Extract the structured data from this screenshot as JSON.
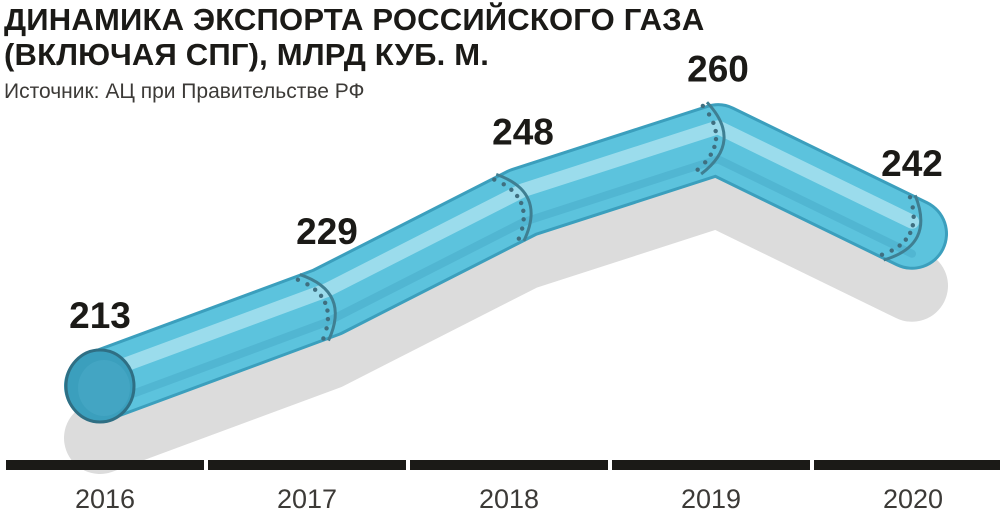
{
  "header": {
    "title_line1": "ДИНАМИКА ЭКСПОРТА РОССИЙСКОГО ГАЗА",
    "title_line2": "(ВКЛЮЧАЯ СПГ), МЛРД КУБ. М.",
    "source": "Источник: АЦ при Правительстве РФ"
  },
  "chart_data": {
    "type": "line",
    "title": "ДИНАМИКА ЭКСПОРТА РОССИЙСКОГО ГАЗА (ВКЛЮЧАЯ СПГ), МЛРД КУБ. М.",
    "categories": [
      "2016",
      "2017",
      "2018",
      "2019",
      "2020"
    ],
    "values": [
      213,
      229,
      248,
      260,
      242
    ],
    "value_labels": [
      "213",
      "229",
      "248",
      "260",
      "242"
    ],
    "xlabel": "",
    "ylabel": "",
    "grid": false,
    "legend": "none",
    "style": "pipe",
    "colors": {
      "pipe": "#5cc3dd",
      "pipe_light": "#a6e0ee",
      "pipe_dark": "#3b9fbd",
      "shadow": "#dcdcdc",
      "axis": "#1b1a17",
      "text": "#1b1a17"
    }
  }
}
